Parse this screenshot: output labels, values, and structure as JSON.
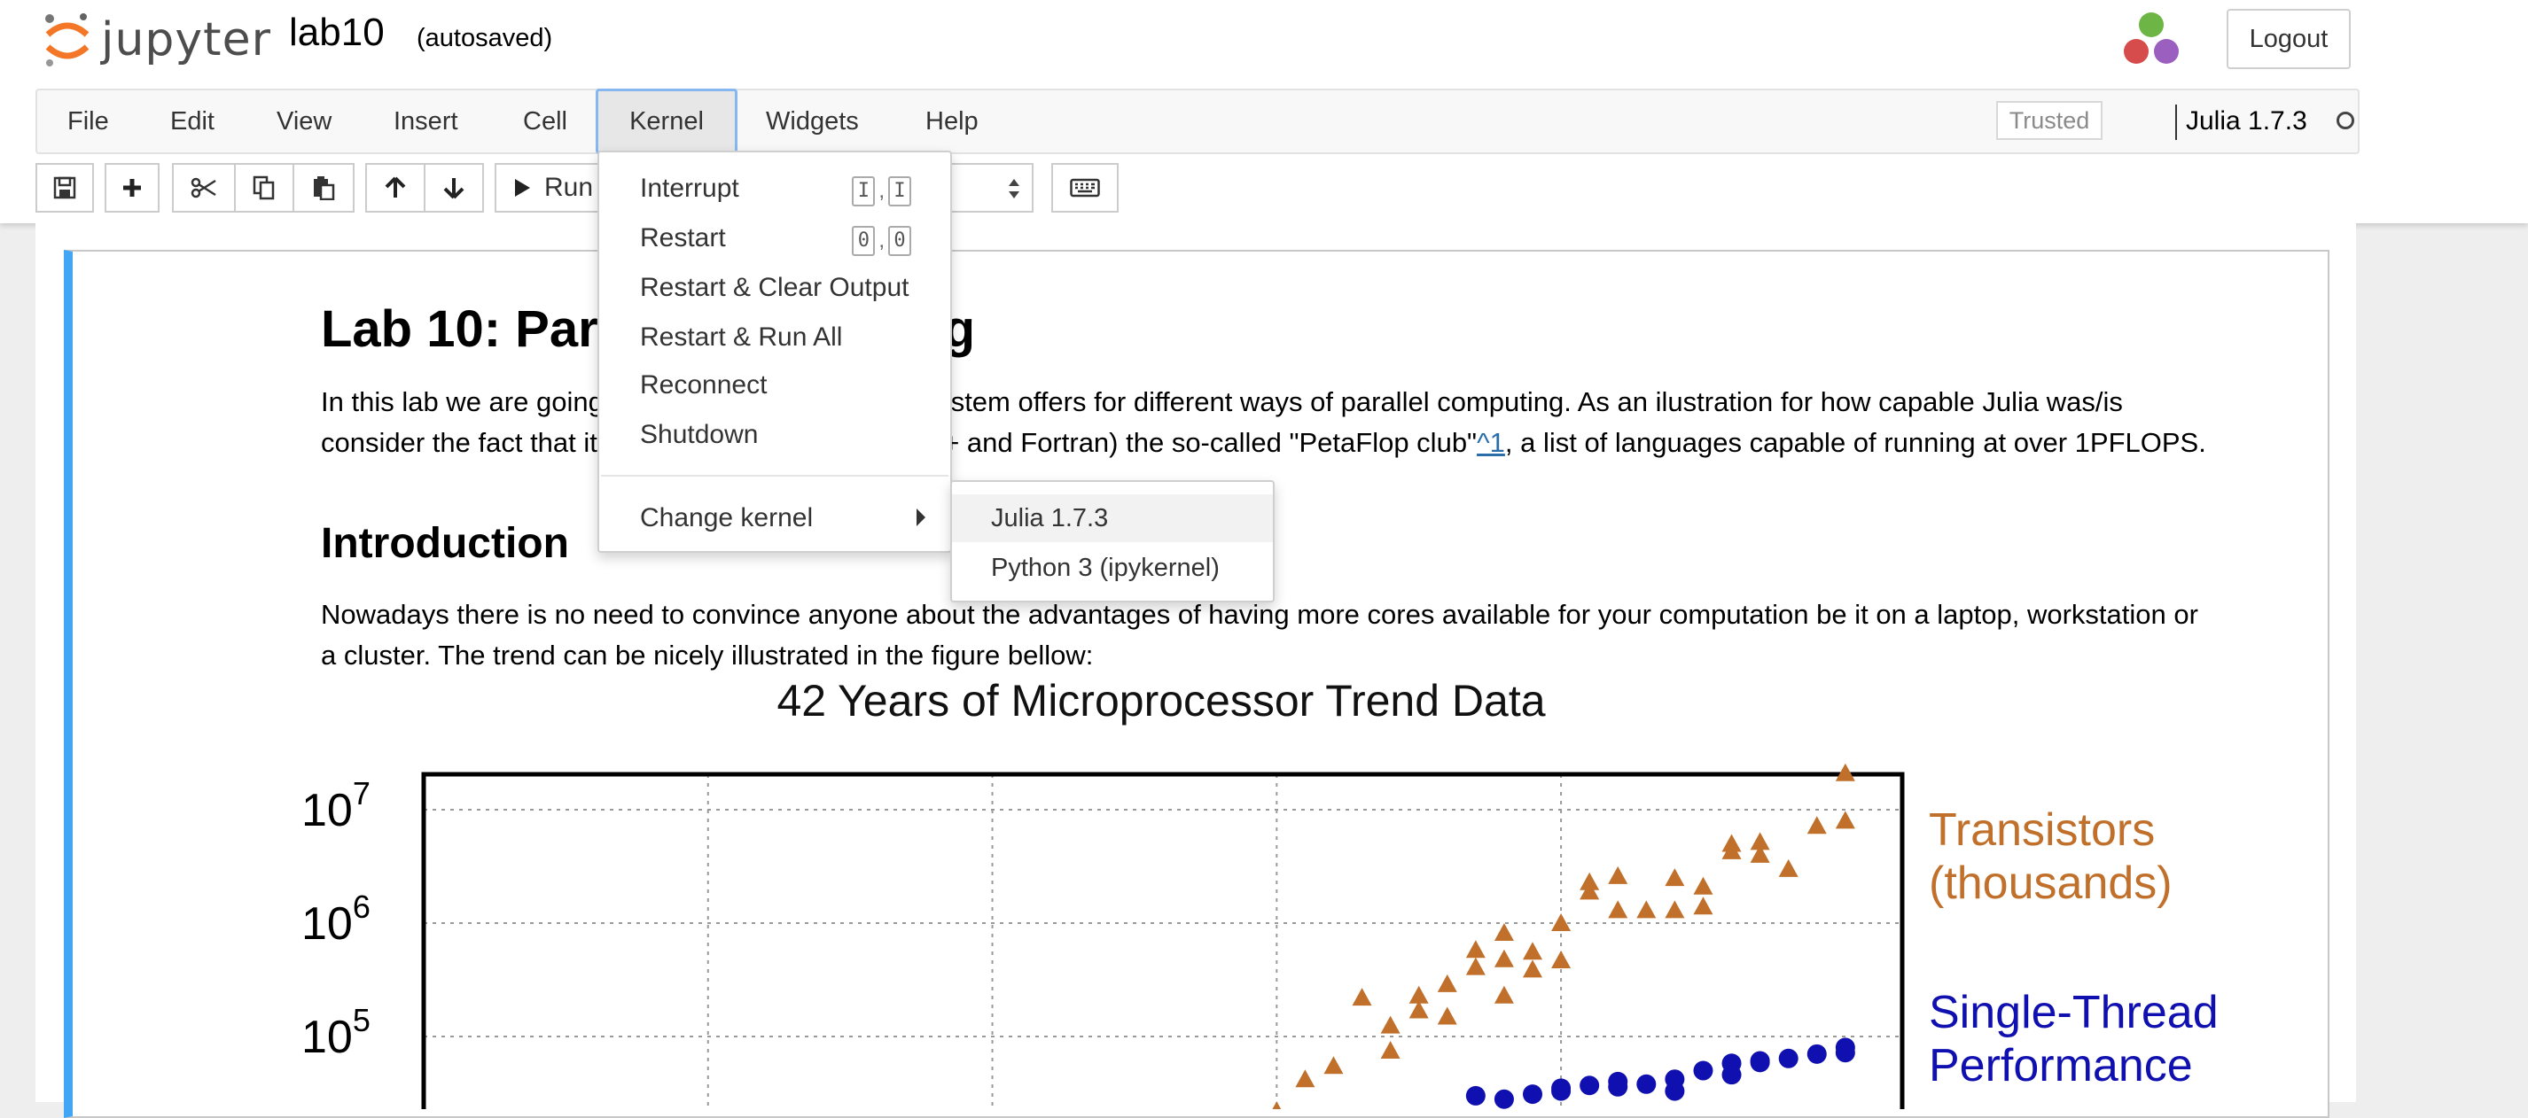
{
  "header": {
    "logo_text": "jupyter",
    "notebook_name": "lab10",
    "autosave_status": "(autosaved)",
    "logout_label": "Logout"
  },
  "menubar": {
    "items": [
      "File",
      "Edit",
      "View",
      "Insert",
      "Cell",
      "Kernel",
      "Widgets",
      "Help"
    ],
    "trusted_label": "Trusted",
    "kernel_name": "Julia 1.7.3"
  },
  "toolbar": {
    "run_label": "Run"
  },
  "kernel_menu": {
    "items": [
      {
        "label": "Interrupt",
        "shortcut": [
          "I",
          "I"
        ]
      },
      {
        "label": "Restart",
        "shortcut": [
          "0",
          "0"
        ]
      },
      {
        "label": "Restart & Clear Output"
      },
      {
        "label": "Restart & Run All"
      },
      {
        "label": "Reconnect"
      },
      {
        "label": "Shutdown"
      },
      {
        "label": "Change kernel"
      }
    ],
    "submenu": [
      "Julia 1.7.3",
      "Python 3 (ipykernel)"
    ]
  },
  "cell": {
    "heading1": "Lab 10: Parallel computing",
    "intro_line1": "In this lab we are going to look at what Julia's ecosystem offers for different ways of parallel computing. As an ilustration for how capable Julia was/is",
    "intro_line2_a": "consider the fact that it has joined (alongside C, C++ and Fortran) the so-called \"PetaFlop club\"",
    "intro_link": "^1",
    "intro_line2_b": ", a list of languages capable of running at over 1PFLOPS.",
    "heading2": "Introduction",
    "para2_line1": "Nowadays there is no need to convince anyone about the advantages of having more cores available for your computation be it on a laptop, workstation or",
    "para2_line2": "a cluster. The trend can be nicely illustrated in the figure bellow:"
  },
  "chart_data": {
    "type": "scatter",
    "title": "42 Years of Microprocessor Trend Data",
    "y_scale": "log",
    "grid": true,
    "y_tick_labels": [
      "10^7",
      "10^6",
      "10^5"
    ],
    "series": [
      {
        "name": "Transistors (thousands)",
        "color": "#c0702a",
        "marker": "triangle",
        "points": [
          [
            2000,
            22000
          ],
          [
            2001,
            42000
          ],
          [
            2002,
            55000
          ],
          [
            2003,
            220000
          ],
          [
            2004,
            125000
          ],
          [
            2004,
            75000
          ],
          [
            2005,
            170000
          ],
          [
            2005,
            230000
          ],
          [
            2006,
            290000
          ],
          [
            2006,
            150000
          ],
          [
            2007,
            410000
          ],
          [
            2007,
            580000
          ],
          [
            2008,
            230000
          ],
          [
            2008,
            480000
          ],
          [
            2008,
            820000
          ],
          [
            2009,
            390000
          ],
          [
            2009,
            560000
          ],
          [
            2010,
            1000000
          ],
          [
            2010,
            470000
          ],
          [
            2011,
            1900000
          ],
          [
            2011,
            2300000
          ],
          [
            2012,
            1300000
          ],
          [
            2012,
            2600000
          ],
          [
            2013,
            1300000
          ],
          [
            2014,
            2500000
          ],
          [
            2014,
            1300000
          ],
          [
            2015,
            2100000
          ],
          [
            2015,
            1400000
          ],
          [
            2016,
            5000000
          ],
          [
            2016,
            4300000
          ],
          [
            2017,
            4000000
          ],
          [
            2017,
            5200000
          ],
          [
            2018,
            3000000
          ],
          [
            2019,
            7200000
          ],
          [
            2020,
            8000000
          ],
          [
            2020,
            21000000
          ]
        ]
      },
      {
        "name": "Single-Thread Performance",
        "color": "#1010b0",
        "marker": "circle",
        "points": [
          [
            2007,
            30000
          ],
          [
            2008,
            28000
          ],
          [
            2009,
            31000
          ],
          [
            2010,
            35000
          ],
          [
            2010,
            33000
          ],
          [
            2011,
            37000
          ],
          [
            2012,
            36000
          ],
          [
            2012,
            40000
          ],
          [
            2013,
            38000
          ],
          [
            2014,
            42000
          ],
          [
            2014,
            33000
          ],
          [
            2015,
            50000
          ],
          [
            2016,
            46000
          ],
          [
            2016,
            58000
          ],
          [
            2017,
            59000
          ],
          [
            2017,
            61000
          ],
          [
            2018,
            64000
          ],
          [
            2019,
            70000
          ],
          [
            2020,
            72000
          ],
          [
            2020,
            80000
          ]
        ]
      }
    ],
    "x_range": [
      1970,
      2022
    ],
    "y_range": [
      10000,
      30000000
    ]
  }
}
